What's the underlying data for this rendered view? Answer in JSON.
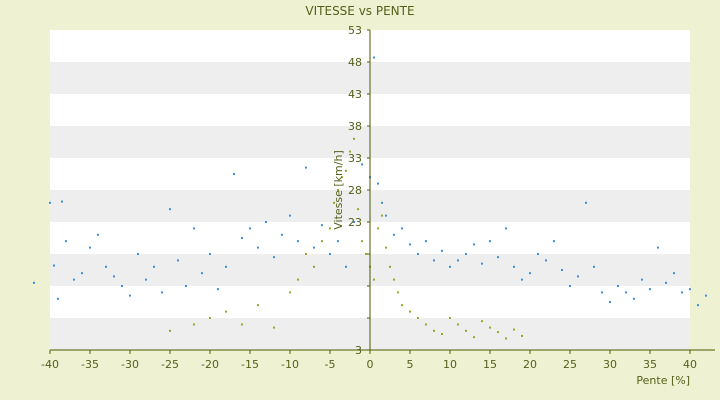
{
  "chart_data": {
    "type": "scatter",
    "title": "VITESSE vs PENTE",
    "xlabel": "Pente [%]",
    "ylabel": "Vitesse [km/h]",
    "xlim": [
      -40,
      40
    ],
    "ylim": [
      3,
      53
    ],
    "x_ticks": [
      -40,
      -35,
      -30,
      -25,
      -20,
      -15,
      -10,
      -5,
      0,
      5,
      10,
      15,
      20,
      25,
      30,
      35,
      40
    ],
    "y_ticks": [
      3,
      8,
      13,
      18,
      23,
      28,
      33,
      38,
      43,
      48,
      53
    ],
    "y_tick_labels": [
      "3",
      "",
      "",
      "",
      "23",
      "28",
      "33",
      "38",
      "43",
      "48",
      "53"
    ],
    "grid": "horizontal alternating bands",
    "legend": "none",
    "colors": {
      "background": "#eef2d2",
      "band_light": "#ffffff",
      "band_dark": "#eeeeee",
      "axis": "#4a5a00",
      "text": "#555f1a",
      "series_blue": "#3d8fd8",
      "series_olive": "#9aa42a"
    },
    "series": [
      {
        "color": "#3d8fd8",
        "points": [
          [
            -42,
            13.5
          ],
          [
            -40,
            26
          ],
          [
            -39.5,
            16.2
          ],
          [
            -39,
            11
          ],
          [
            -38.5,
            26.2
          ],
          [
            -38,
            20
          ],
          [
            -37,
            14
          ],
          [
            -36,
            15
          ],
          [
            -35,
            19
          ],
          [
            -34,
            21
          ],
          [
            -33,
            16
          ],
          [
            -32,
            14.5
          ],
          [
            -31,
            13
          ],
          [
            -30,
            11.5
          ],
          [
            -29,
            18
          ],
          [
            -28,
            14
          ],
          [
            -27,
            16
          ],
          [
            -26,
            12
          ],
          [
            -25,
            25
          ],
          [
            -24,
            17
          ],
          [
            -23,
            13
          ],
          [
            -22,
            22
          ],
          [
            -21,
            15
          ],
          [
            -20,
            18
          ],
          [
            -19,
            12.5
          ],
          [
            -18,
            16
          ],
          [
            -17,
            30.5
          ],
          [
            -16,
            20.5
          ],
          [
            -15,
            22
          ],
          [
            -14,
            19
          ],
          [
            -13,
            23
          ],
          [
            -12,
            17.5
          ],
          [
            -11,
            21
          ],
          [
            -10,
            24
          ],
          [
            -9,
            20
          ],
          [
            -8,
            31.5
          ],
          [
            -7,
            19
          ],
          [
            -6,
            22.5
          ],
          [
            -5,
            18
          ],
          [
            -4,
            20
          ],
          [
            -3,
            16
          ],
          [
            -2,
            23
          ],
          [
            -1,
            32
          ],
          [
            0,
            30
          ],
          [
            0.5,
            48.7
          ],
          [
            1,
            29
          ],
          [
            1.5,
            26
          ],
          [
            2,
            24
          ],
          [
            3,
            21
          ],
          [
            4,
            22
          ],
          [
            5,
            19.5
          ],
          [
            6,
            18
          ],
          [
            7,
            20
          ],
          [
            8,
            17
          ],
          [
            9,
            18.5
          ],
          [
            10,
            16
          ],
          [
            11,
            17
          ],
          [
            12,
            18
          ],
          [
            13,
            19.5
          ],
          [
            14,
            16.5
          ],
          [
            15,
            20
          ],
          [
            16,
            17.5
          ],
          [
            17,
            22
          ],
          [
            18,
            16
          ],
          [
            19,
            14
          ],
          [
            20,
            15
          ],
          [
            21,
            18
          ],
          [
            22,
            17
          ],
          [
            23,
            20
          ],
          [
            24,
            15.5
          ],
          [
            25,
            13
          ],
          [
            26,
            14.5
          ],
          [
            27,
            26
          ],
          [
            28,
            16
          ],
          [
            29,
            12
          ],
          [
            30,
            10.5
          ],
          [
            31,
            13
          ],
          [
            32,
            12
          ],
          [
            33,
            11
          ],
          [
            34,
            14
          ],
          [
            35,
            12.5
          ],
          [
            36,
            19
          ],
          [
            37,
            13.5
          ],
          [
            38,
            15
          ],
          [
            39,
            12
          ],
          [
            40,
            12.5
          ],
          [
            41,
            10
          ],
          [
            42,
            11.5
          ]
        ]
      },
      {
        "color": "#9aa42a",
        "points": [
          [
            -25,
            6
          ],
          [
            -22,
            7
          ],
          [
            -20,
            8
          ],
          [
            -18,
            9
          ],
          [
            -16,
            7
          ],
          [
            -14,
            10
          ],
          [
            -12,
            6.5
          ],
          [
            -10,
            12
          ],
          [
            -9,
            14
          ],
          [
            -8,
            18
          ],
          [
            -7,
            16
          ],
          [
            -6,
            20
          ],
          [
            -5,
            22
          ],
          [
            -4.5,
            26
          ],
          [
            -4,
            28
          ],
          [
            -3.5,
            30
          ],
          [
            -3,
            31
          ],
          [
            -2.5,
            34
          ],
          [
            -2,
            36
          ],
          [
            -1.5,
            25
          ],
          [
            -1,
            20
          ],
          [
            -0.5,
            18
          ],
          [
            0,
            16
          ],
          [
            0.5,
            14
          ],
          [
            1,
            22
          ],
          [
            1.5,
            24
          ],
          [
            2,
            19
          ],
          [
            2.5,
            16
          ],
          [
            3,
            14
          ],
          [
            3.5,
            12
          ],
          [
            4,
            10
          ],
          [
            5,
            9
          ],
          [
            6,
            8
          ],
          [
            7,
            7
          ],
          [
            8,
            6
          ],
          [
            9,
            5.5
          ],
          [
            10,
            8
          ],
          [
            11,
            7
          ],
          [
            12,
            6
          ],
          [
            13,
            5
          ],
          [
            14,
            7.5
          ],
          [
            15,
            6.5
          ],
          [
            16,
            5.8
          ],
          [
            17,
            4.8
          ],
          [
            18,
            6.2
          ],
          [
            19,
            5.2
          ]
        ]
      }
    ]
  }
}
